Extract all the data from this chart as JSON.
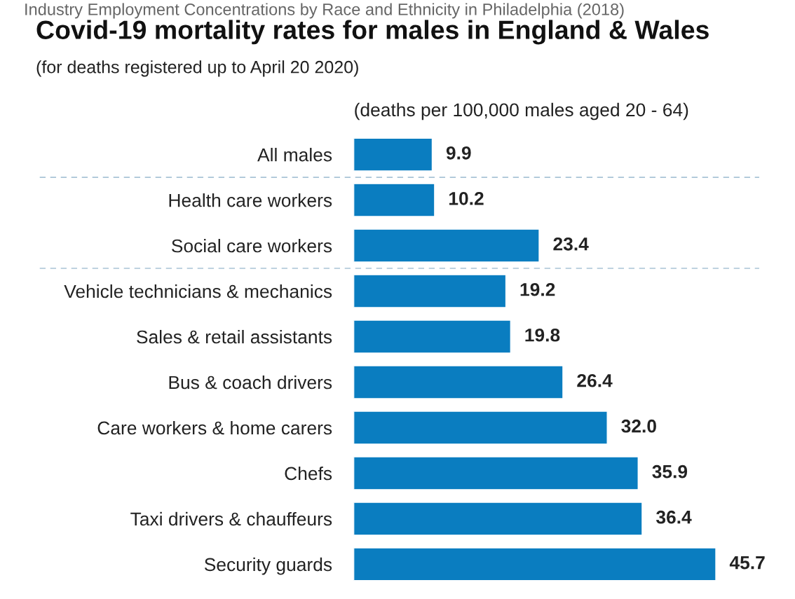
{
  "chart_data": {
    "type": "bar",
    "orientation": "horizontal",
    "title": "Covid-19 mortality rates for males in England & Wales",
    "subtitle": "(for deaths registered up to April 20 2020)",
    "xlabel": "(deaths per 100,000 males aged 20 - 64)",
    "annotations": [
      "Industry Employment Concentrations by Race and Ethnicity in Philadelphia (2018)"
    ],
    "categories": [
      "All males",
      "Health care workers",
      "Social care workers",
      "Vehicle technicians & mechanics",
      "Sales & retail assistants",
      "Bus & coach drivers",
      "Care workers & home carers",
      "Chefs",
      "Taxi drivers & chauffeurs",
      "Security guards"
    ],
    "values": [
      9.9,
      10.2,
      23.4,
      19.2,
      19.8,
      26.4,
      32.0,
      35.9,
      36.4,
      45.7
    ],
    "value_labels": [
      "9.9",
      "10.2",
      "23.4",
      "19.2",
      "19.8",
      "26.4",
      "32.0",
      "35.9",
      "36.4",
      "45.7"
    ],
    "color": "#0a7dc0",
    "grid": false,
    "legend": false
  }
}
